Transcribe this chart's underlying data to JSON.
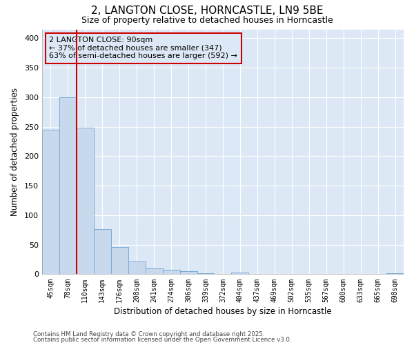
{
  "title_line1": "2, LANGTON CLOSE, HORNCASTLE, LN9 5BE",
  "title_line2": "Size of property relative to detached houses in Horncastle",
  "xlabel": "Distribution of detached houses by size in Horncastle",
  "ylabel": "Number of detached properties",
  "bar_color": "#c8d9ee",
  "bar_edgecolor": "#7aaad4",
  "bg_color": "#ffffff",
  "plot_bg_color": "#dce8f5",
  "grid_color": "#ffffff",
  "categories": [
    "45sqm",
    "78sqm",
    "110sqm",
    "143sqm",
    "176sqm",
    "208sqm",
    "241sqm",
    "274sqm",
    "306sqm",
    "339sqm",
    "372sqm",
    "404sqm",
    "437sqm",
    "469sqm",
    "502sqm",
    "535sqm",
    "567sqm",
    "600sqm",
    "633sqm",
    "665sqm",
    "698sqm"
  ],
  "values": [
    245,
    300,
    248,
    77,
    46,
    22,
    10,
    8,
    5,
    2,
    0,
    3,
    0,
    0,
    0,
    0,
    0,
    0,
    0,
    0,
    2
  ],
  "vline_x": 1.5,
  "vline_color": "#cc0000",
  "annotation_text": "2 LANGTON CLOSE: 90sqm\n← 37% of detached houses are smaller (347)\n63% of semi-detached houses are larger (592) →",
  "annotation_box_color": "#cc0000",
  "ylim": [
    0,
    415
  ],
  "yticks": [
    0,
    50,
    100,
    150,
    200,
    250,
    300,
    350,
    400
  ],
  "footnote1": "Contains HM Land Registry data © Crown copyright and database right 2025.",
  "footnote2": "Contains public sector information licensed under the Open Government Licence v3.0."
}
